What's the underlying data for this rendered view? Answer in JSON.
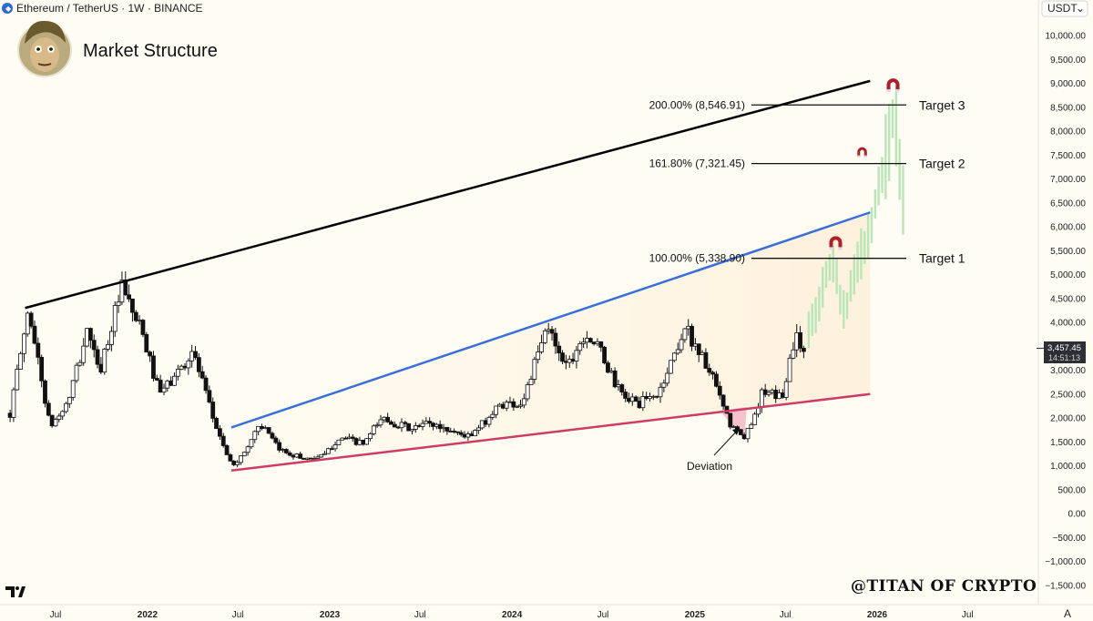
{
  "header": {
    "symbol": "Ethereum / TetherUS · 1W · BINANCE",
    "currency_button": "USDT",
    "auto_button": "A"
  },
  "profile": {
    "title": "Market Structure"
  },
  "watermark": "@TITAN OF CRYPTO",
  "price_badge": {
    "price": "3,457.45",
    "countdown": "14:51:13"
  },
  "colors": {
    "background": "#fefcf3",
    "up_candle": "#ffffff",
    "down_candle": "#111111",
    "projection": "#b7e6b7",
    "black_line": "#000000",
    "blue_line": "#3a6fd8",
    "pink_line": "#cc3d66",
    "deviation_fill": "#f5b8c3",
    "magnet_red": "#b01e2e"
  },
  "chart_data": {
    "type": "candlestick",
    "title": "Market Structure",
    "ylim": [
      -1700,
      10400
    ],
    "y_ticks": [
      -1500,
      -1000,
      -500,
      0,
      500,
      1000,
      1500,
      2000,
      2500,
      3000,
      3500,
      4000,
      4500,
      5000,
      5500,
      6000,
      6500,
      7000,
      7500,
      8000,
      8500,
      9000,
      9500,
      10000
    ],
    "y_tick_labels": [
      "−1,500.00",
      "−1,000.00",
      "−500.00",
      "0.00",
      "500.00",
      "1,000.00",
      "1,500.00",
      "2,000.00",
      "2,500.00",
      "3,000.00",
      "3,500.00",
      "4,000.00",
      "4,500.00",
      "5,000.00",
      "5,500.00",
      "6,000.00",
      "6,500.00",
      "7,000.00",
      "7,500.00",
      "8,000.00",
      "8,500.00",
      "9,000.00",
      "9,500.00",
      "10,000.00"
    ],
    "x_range": [
      "2021-04-01",
      "2026-10-15"
    ],
    "x_ticks": [
      {
        "date": "2021-07-01",
        "label": "Jul",
        "bold": false
      },
      {
        "date": "2022-01-01",
        "label": "2022",
        "bold": true
      },
      {
        "date": "2022-07-01",
        "label": "Jul",
        "bold": false
      },
      {
        "date": "2023-01-01",
        "label": "2023",
        "bold": true
      },
      {
        "date": "2023-07-01",
        "label": "Jul",
        "bold": false
      },
      {
        "date": "2024-01-01",
        "label": "2024",
        "bold": true
      },
      {
        "date": "2024-07-01",
        "label": "Jul",
        "bold": false
      },
      {
        "date": "2025-01-01",
        "label": "2025",
        "bold": true
      },
      {
        "date": "2025-07-01",
        "label": "Jul",
        "bold": false
      },
      {
        "date": "2026-01-01",
        "label": "2026",
        "bold": true
      },
      {
        "date": "2026-07-01",
        "label": "Jul",
        "bold": false
      }
    ],
    "anchors": [
      [
        "2021-04-01",
        2100
      ],
      [
        "2021-05-08",
        4300
      ],
      [
        "2021-06-20",
        1800
      ],
      [
        "2021-07-25",
        2300
      ],
      [
        "2021-09-05",
        3900
      ],
      [
        "2021-09-25",
        2900
      ],
      [
        "2021-11-10",
        4700
      ],
      [
        "2021-12-20",
        3800
      ],
      [
        "2022-01-25",
        2500
      ],
      [
        "2022-02-20",
        2800
      ],
      [
        "2022-04-02",
        3400
      ],
      [
        "2022-05-12",
        2000
      ],
      [
        "2022-06-18",
        1000
      ],
      [
        "2022-07-10",
        1200
      ],
      [
        "2022-08-14",
        1900
      ],
      [
        "2022-09-20",
        1350
      ],
      [
        "2022-11-10",
        1150
      ],
      [
        "2022-12-20",
        1200
      ],
      [
        "2023-01-20",
        1600
      ],
      [
        "2023-03-10",
        1450
      ],
      [
        "2023-04-15",
        2000
      ],
      [
        "2023-06-15",
        1750
      ],
      [
        "2023-07-15",
        1900
      ],
      [
        "2023-10-10",
        1600
      ],
      [
        "2023-12-10",
        2300
      ],
      [
        "2024-01-20",
        2300
      ],
      [
        "2024-03-12",
        3900
      ],
      [
        "2024-04-20",
        3100
      ],
      [
        "2024-05-27",
        3800
      ],
      [
        "2024-06-25",
        3400
      ],
      [
        "2024-08-05",
        2500
      ],
      [
        "2024-09-10",
        2300
      ],
      [
        "2024-10-20",
        2500
      ],
      [
        "2024-12-12",
        3900
      ],
      [
        "2025-01-15",
        3300
      ],
      [
        "2025-02-10",
        2700
      ],
      [
        "2025-03-10",
        1900
      ],
      [
        "2025-04-10",
        1550
      ],
      [
        "2025-05-15",
        2500
      ],
      [
        "2025-06-25",
        2450
      ],
      [
        "2025-07-20",
        3700
      ],
      [
        "2025-08-10",
        3457
      ]
    ],
    "projection_anchors": [
      [
        "2025-08-10",
        3600
      ],
      [
        "2025-09-15",
        4700
      ],
      [
        "2025-10-01",
        5300
      ],
      [
        "2025-10-25",
        4200
      ],
      [
        "2025-11-20",
        5000
      ],
      [
        "2025-12-25",
        6300
      ],
      [
        "2026-01-15",
        7300
      ],
      [
        "2026-02-05",
        8500
      ],
      [
        "2026-02-25",
        6300
      ]
    ],
    "trend_lines": [
      {
        "name": "resistance",
        "color": "#000000",
        "from": [
          "2021-05-01",
          4300
        ],
        "to": [
          "2025-12-18",
          9050
        ]
      },
      {
        "name": "channel-top",
        "color": "#3a6fd8",
        "from": [
          "2022-06-18",
          1800
        ],
        "to": [
          "2025-12-18",
          6300
        ]
      },
      {
        "name": "support",
        "color": "#cc3d66",
        "from": [
          "2022-06-18",
          900
        ],
        "to": [
          "2025-12-18",
          2500
        ]
      }
    ],
    "deviation_zone": [
      [
        "2025-02-20",
        2150
      ],
      [
        "2025-04-15",
        2230
      ],
      [
        "2025-04-10",
        1550
      ]
    ],
    "deviation_label": "Deviation",
    "fib_levels": [
      {
        "label": "100.00% (5,338.90)",
        "price": 5338.9,
        "target": "Target 1"
      },
      {
        "label": "161.80% (7,321.45)",
        "price": 7321.45,
        "target": "Target 2"
      },
      {
        "label": "200.00% (8,546.91)",
        "price": 8546.91,
        "target": "Target 3"
      }
    ],
    "magnets": [
      [
        "2025-10-10",
        5650
      ],
      [
        "2025-12-02",
        7550
      ],
      [
        "2026-02-02",
        8950
      ]
    ],
    "current_price": 3457.45
  }
}
